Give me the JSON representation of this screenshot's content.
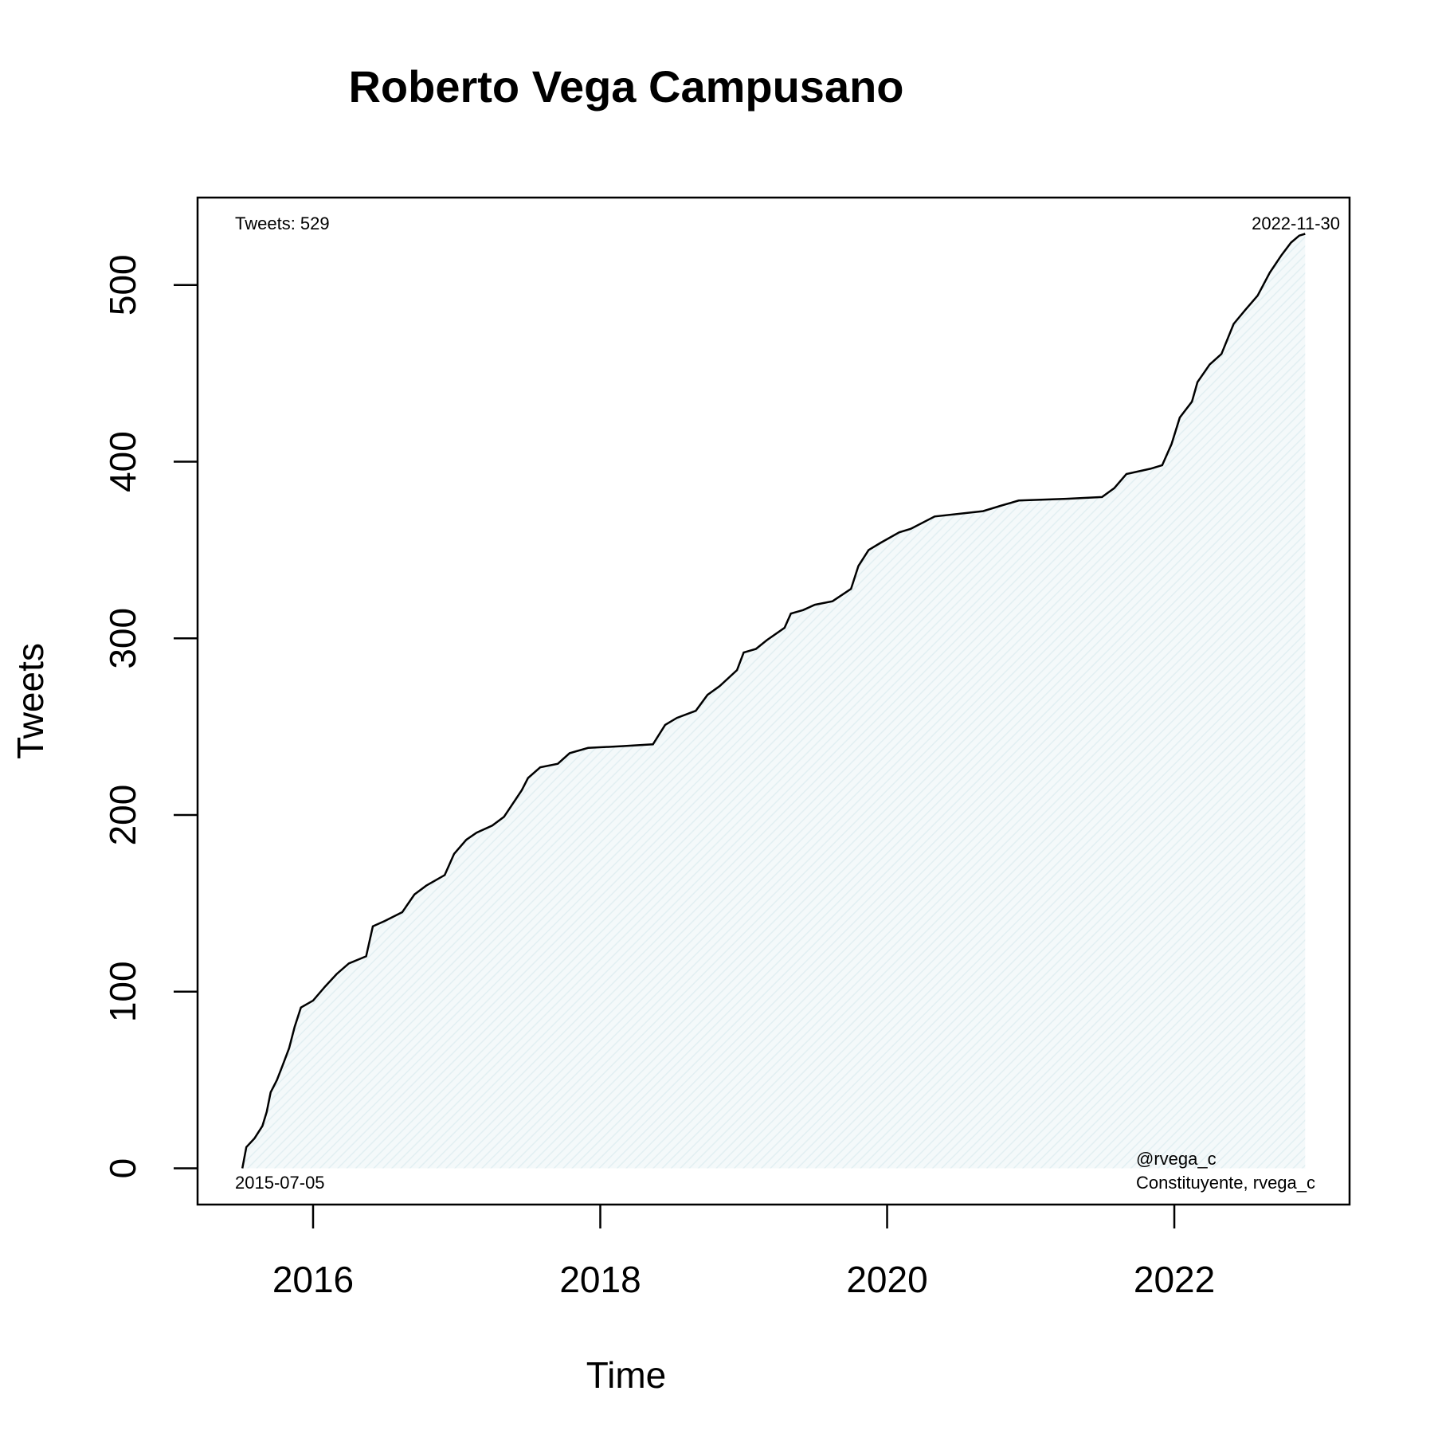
{
  "chart_data": {
    "type": "area",
    "title": "Roberto Vega Campusano",
    "xlabel": "Time",
    "ylabel": "Tweets",
    "xlim": [
      "2015-03-13",
      "2023-03-23"
    ],
    "ylim": [
      -20.5,
      549.5
    ],
    "x_ticks": [
      {
        "date": "2016-01-01",
        "label": "2016"
      },
      {
        "date": "2018-01-01",
        "label": "2018"
      },
      {
        "date": "2020-01-01",
        "label": "2020"
      },
      {
        "date": "2022-01-01",
        "label": "2022"
      }
    ],
    "y_ticks": [
      {
        "value": 0,
        "label": "0"
      },
      {
        "value": 100,
        "label": "100"
      },
      {
        "value": 200,
        "label": "200"
      },
      {
        "value": 300,
        "label": "300"
      },
      {
        "value": 400,
        "label": "400"
      },
      {
        "value": 500,
        "label": "500"
      }
    ],
    "grid": false,
    "fill_color": "#e6f2f5",
    "line_color": "#000000",
    "annotations": {
      "top_left": "Tweets: 529",
      "top_right": "2022-11-30",
      "bottom_left": "2015-07-05",
      "bottom_right_1": "@rvega_c",
      "bottom_right_2": "Constituyente, rvega_c"
    },
    "series": [
      {
        "points": [
          [
            "2015-07-05",
            0
          ],
          [
            "2015-07-15",
            12
          ],
          [
            "2015-08-05",
            17
          ],
          [
            "2015-08-25",
            24
          ],
          [
            "2015-09-05",
            32
          ],
          [
            "2015-09-15",
            43
          ],
          [
            "2015-10-01",
            50
          ],
          [
            "2015-10-15",
            58
          ],
          [
            "2015-11-01",
            68
          ],
          [
            "2015-11-15",
            80
          ],
          [
            "2015-12-01",
            91
          ],
          [
            "2016-01-01",
            95
          ],
          [
            "2016-02-01",
            103
          ],
          [
            "2016-03-01",
            110
          ],
          [
            "2016-04-01",
            116
          ],
          [
            "2016-05-15",
            120
          ],
          [
            "2016-06-01",
            137
          ],
          [
            "2016-07-01",
            140
          ],
          [
            "2016-08-15",
            145
          ],
          [
            "2016-09-15",
            155
          ],
          [
            "2016-10-15",
            160
          ],
          [
            "2016-12-01",
            166
          ],
          [
            "2016-12-25",
            178
          ],
          [
            "2017-01-25",
            186
          ],
          [
            "2017-02-20",
            190
          ],
          [
            "2017-04-01",
            194
          ],
          [
            "2017-05-01",
            199
          ],
          [
            "2017-06-15",
            214
          ],
          [
            "2017-07-01",
            221
          ],
          [
            "2017-08-01",
            227
          ],
          [
            "2017-09-15",
            229
          ],
          [
            "2017-10-15",
            235
          ],
          [
            "2017-12-01",
            238
          ],
          [
            "2018-03-01",
            239
          ],
          [
            "2018-05-15",
            240
          ],
          [
            "2018-06-15",
            251
          ],
          [
            "2018-07-15",
            255
          ],
          [
            "2018-09-01",
            259
          ],
          [
            "2018-10-01",
            268
          ],
          [
            "2018-11-01",
            273
          ],
          [
            "2018-12-15",
            282
          ],
          [
            "2019-01-01",
            292
          ],
          [
            "2019-02-01",
            294
          ],
          [
            "2019-03-01",
            299
          ],
          [
            "2019-04-15",
            306
          ],
          [
            "2019-05-01",
            314
          ],
          [
            "2019-06-01",
            316
          ],
          [
            "2019-07-01",
            319
          ],
          [
            "2019-08-15",
            321
          ],
          [
            "2019-10-01",
            328
          ],
          [
            "2019-10-20",
            341
          ],
          [
            "2019-11-15",
            350
          ],
          [
            "2019-12-15",
            354
          ],
          [
            "2020-02-01",
            360
          ],
          [
            "2020-03-01",
            362
          ],
          [
            "2020-05-01",
            369
          ],
          [
            "2020-09-01",
            372
          ],
          [
            "2020-10-15",
            375
          ],
          [
            "2020-12-01",
            378
          ],
          [
            "2021-04-01",
            379
          ],
          [
            "2021-07-01",
            380
          ],
          [
            "2021-08-01",
            385
          ],
          [
            "2021-09-01",
            393
          ],
          [
            "2021-11-01",
            396
          ],
          [
            "2021-12-01",
            398
          ],
          [
            "2021-12-25",
            410
          ],
          [
            "2022-01-15",
            425
          ],
          [
            "2022-02-15",
            434
          ],
          [
            "2022-03-01",
            445
          ],
          [
            "2022-04-01",
            455
          ],
          [
            "2022-05-01",
            461
          ],
          [
            "2022-06-01",
            478
          ],
          [
            "2022-07-01",
            486
          ],
          [
            "2022-08-01",
            494
          ],
          [
            "2022-09-01",
            507
          ],
          [
            "2022-10-01",
            517
          ],
          [
            "2022-10-25",
            524
          ],
          [
            "2022-11-15",
            528
          ],
          [
            "2022-11-30",
            529
          ]
        ]
      }
    ]
  }
}
